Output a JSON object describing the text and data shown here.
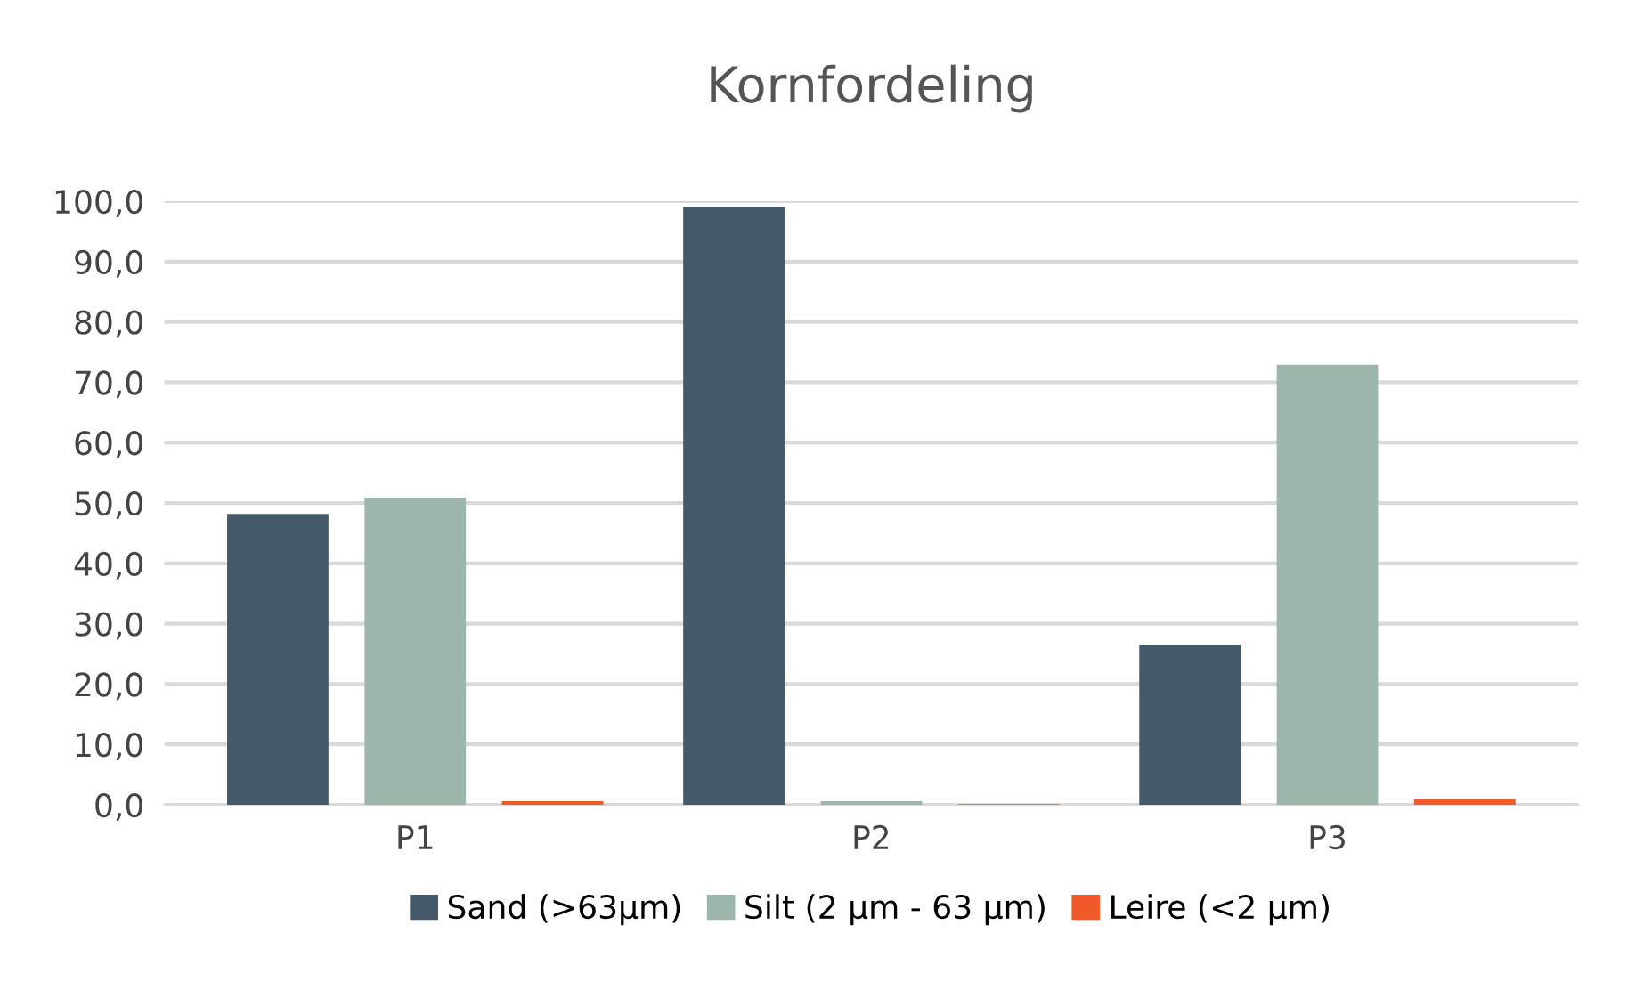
{
  "chart_data": {
    "type": "bar",
    "title": "Kornfordeling",
    "categories": [
      "P1",
      "P2",
      "P3"
    ],
    "series": [
      {
        "name": "Sand (>63µm)",
        "color": "#44596a",
        "values": [
          48.2,
          99.1,
          26.5
        ]
      },
      {
        "name": "Silt (2 µm - 63 µm)",
        "color": "#9db6ac",
        "values": [
          50.9,
          0.6,
          72.9
        ]
      },
      {
        "name": "Leire (<2 µm)",
        "color": "#f05a28",
        "values": [
          0.6,
          0.1,
          0.9
        ]
      }
    ],
    "ylim": [
      0,
      100
    ],
    "yticks": [
      {
        "value": 0,
        "label": "0,0"
      },
      {
        "value": 10,
        "label": "10,0"
      },
      {
        "value": 20,
        "label": "20,0"
      },
      {
        "value": 30,
        "label": "30,0"
      },
      {
        "value": 40,
        "label": "40,0"
      },
      {
        "value": 50,
        "label": "50,0"
      },
      {
        "value": 60,
        "label": "60,0"
      },
      {
        "value": 70,
        "label": "70,0"
      },
      {
        "value": 80,
        "label": "80,0"
      },
      {
        "value": 90,
        "label": "90,0"
      },
      {
        "value": 100,
        "label": "100,0"
      }
    ],
    "grid": "y",
    "legend": "bottom"
  }
}
